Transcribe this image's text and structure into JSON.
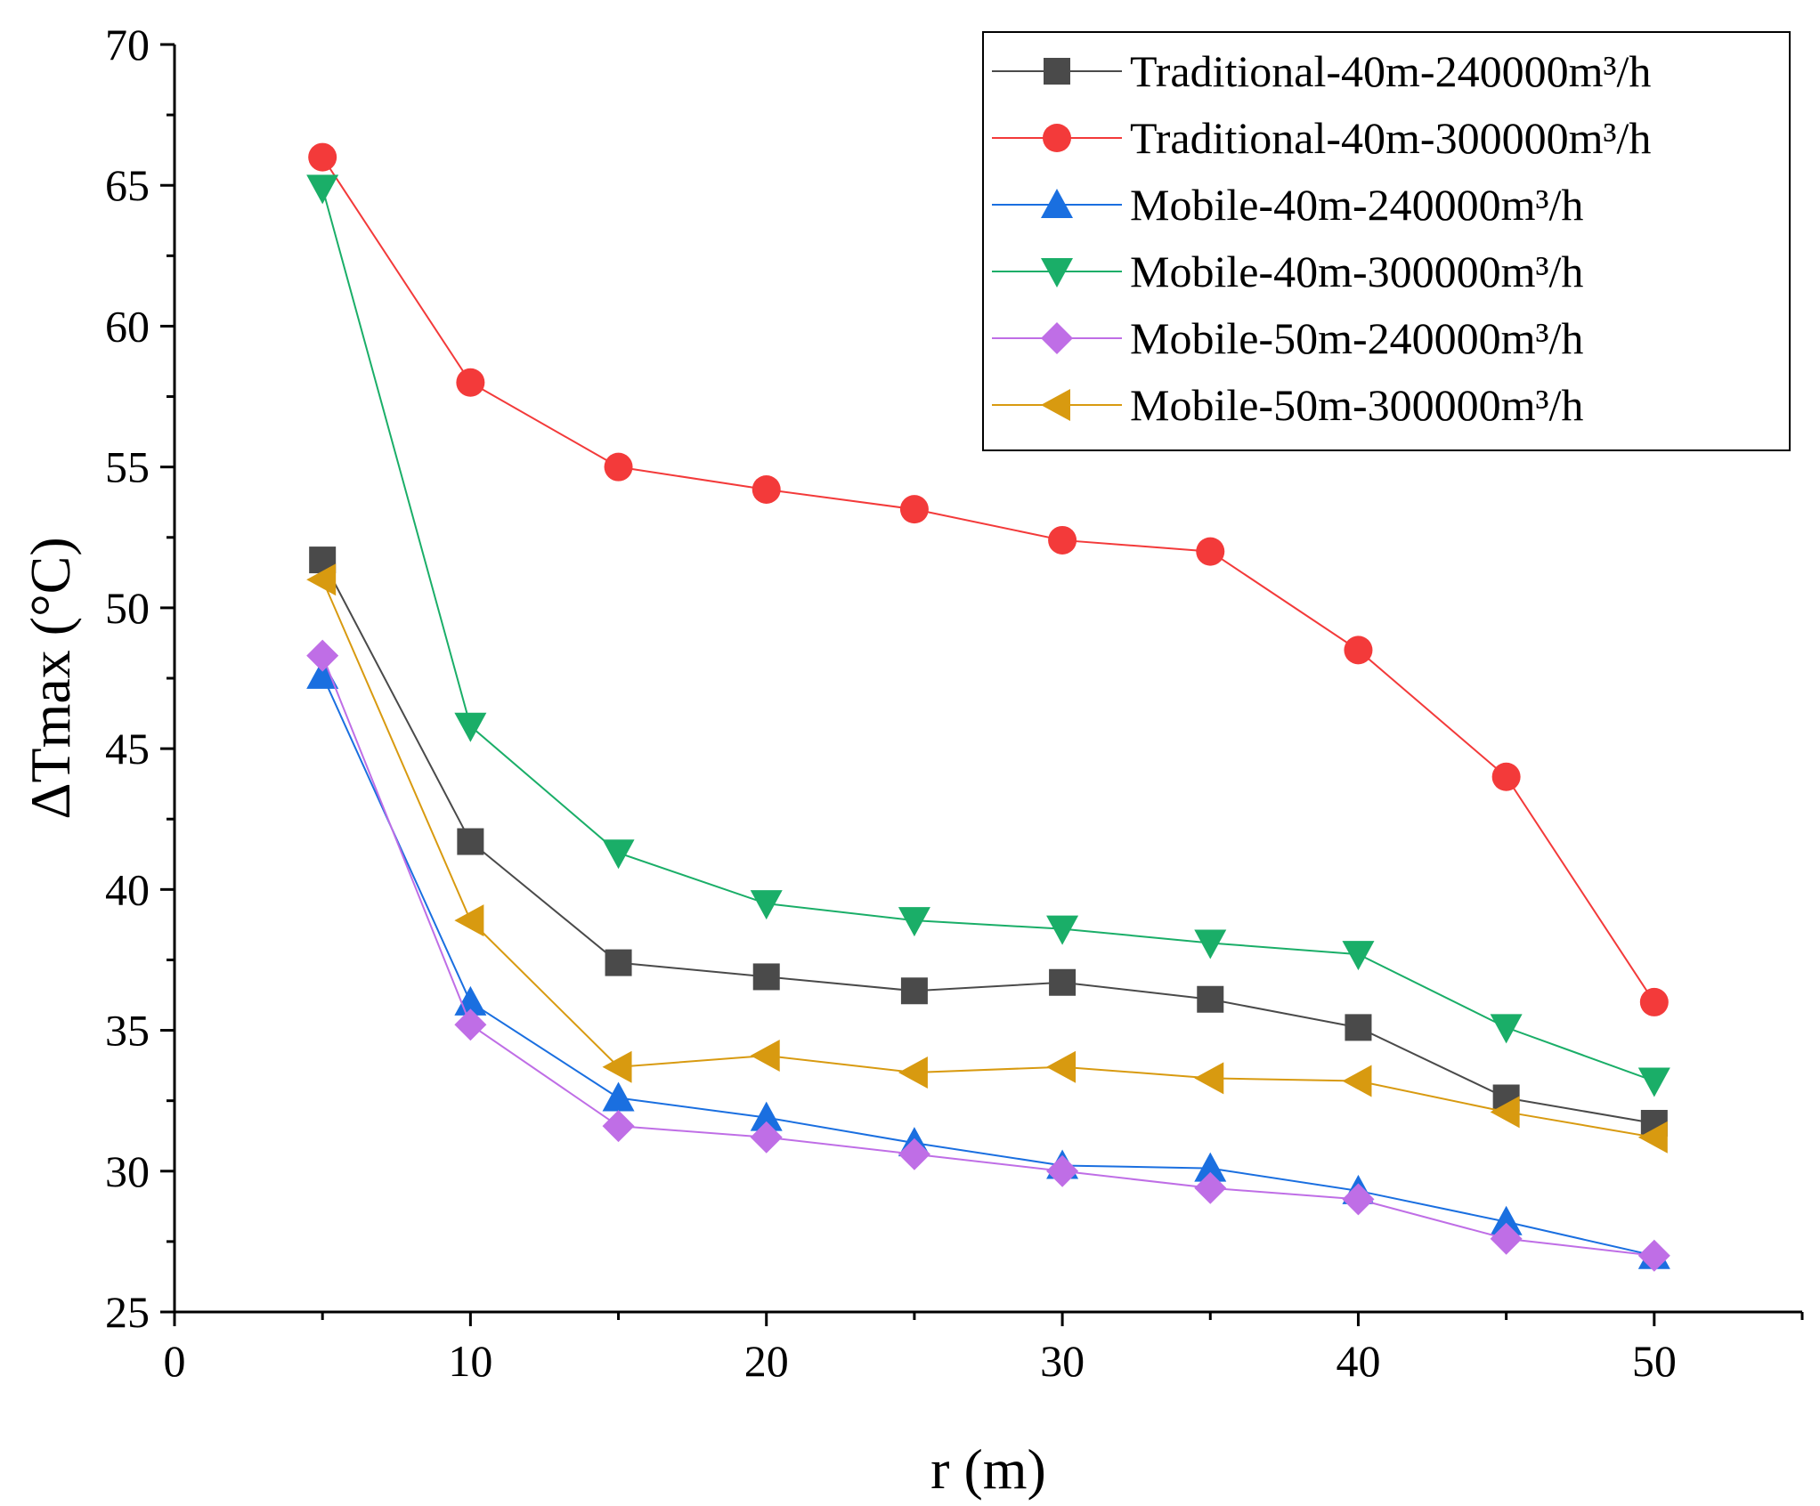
{
  "chart_data": {
    "type": "line",
    "title": "",
    "xlabel": "r (m)",
    "ylabel": "ΔTmax (°C)",
    "xlim": [
      0,
      55
    ],
    "ylim": [
      25,
      70
    ],
    "xticks": [
      0,
      10,
      20,
      30,
      40,
      50
    ],
    "yticks": [
      25,
      30,
      35,
      40,
      45,
      50,
      55,
      60,
      65,
      70
    ],
    "grid": false,
    "legend_position": "top-right",
    "x": [
      5,
      10,
      15,
      20,
      25,
      30,
      35,
      40,
      45,
      50
    ],
    "series": [
      {
        "name": "Traditional-40m-240000m³/h",
        "marker": "square",
        "color": "#4a4a4a",
        "values": [
          51.7,
          41.7,
          37.4,
          36.9,
          36.4,
          36.7,
          36.1,
          35.1,
          32.6,
          31.7
        ]
      },
      {
        "name": "Traditional-40m-300000m³/h",
        "marker": "circle",
        "color": "#f33a3a",
        "values": [
          66.0,
          58.0,
          55.0,
          54.2,
          53.5,
          52.4,
          52.0,
          48.5,
          44.0,
          36.0
        ]
      },
      {
        "name": "Mobile-40m-240000m³/h",
        "marker": "triangle-up",
        "color": "#1a6fe0",
        "values": [
          47.6,
          36.0,
          32.6,
          31.9,
          31.0,
          30.2,
          30.1,
          29.3,
          28.2,
          27.0
        ]
      },
      {
        "name": "Mobile-40m-300000m³/h",
        "marker": "triangle-down",
        "color": "#1aae68",
        "values": [
          64.9,
          45.8,
          41.3,
          39.5,
          38.9,
          38.6,
          38.1,
          37.7,
          35.1,
          33.2
        ]
      },
      {
        "name": "Mobile-50m-240000m³/h",
        "marker": "diamond",
        "color": "#bf6ee6",
        "values": [
          48.3,
          35.2,
          31.6,
          31.2,
          30.6,
          30.0,
          29.4,
          29.0,
          27.6,
          27.0
        ]
      },
      {
        "name": "Mobile-50m-300000m³/h",
        "marker": "triangle-left",
        "color": "#d89a10",
        "values": [
          51.0,
          38.9,
          33.7,
          34.1,
          33.5,
          33.7,
          33.3,
          33.2,
          32.1,
          31.2
        ]
      }
    ]
  }
}
